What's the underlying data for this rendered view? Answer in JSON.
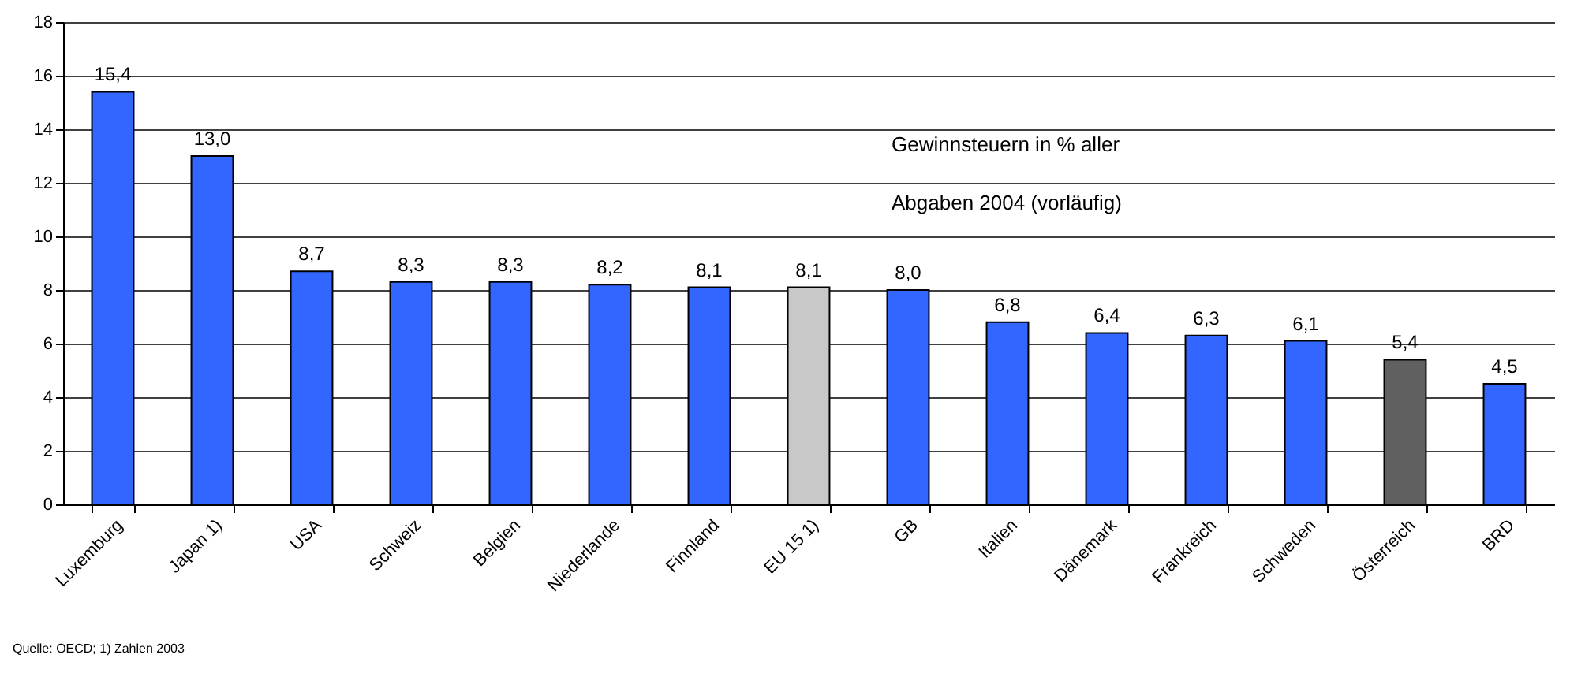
{
  "chart_data": {
    "type": "bar",
    "categories": [
      "Luxemburg",
      "Japan 1)",
      "USA",
      "Schweiz",
      "Belgien",
      "Niederlande",
      "Finnland",
      "EU 15 1)",
      "GB",
      "Italien",
      "Dänemark",
      "Frankreich",
      "Schweden",
      "Österreich",
      "BRD"
    ],
    "values": [
      15.4,
      13.0,
      8.7,
      8.3,
      8.3,
      8.2,
      8.1,
      8.1,
      8.0,
      6.8,
      6.4,
      6.3,
      6.1,
      5.4,
      4.5
    ],
    "value_labels": [
      "15,4",
      "13,0",
      "8,7",
      "8,3",
      "8,3",
      "8,2",
      "8,1",
      "8,1",
      "8,0",
      "6,8",
      "6,4",
      "6,3",
      "6,1",
      "5,4",
      "4,5"
    ],
    "colors": [
      "#3366ff",
      "#3366ff",
      "#3366ff",
      "#3366ff",
      "#3366ff",
      "#3366ff",
      "#3366ff",
      "#c8c8c8",
      "#3366ff",
      "#3366ff",
      "#3366ff",
      "#3366ff",
      "#3366ff",
      "#606060",
      "#3366ff"
    ],
    "ylim": [
      0,
      18
    ],
    "yticks": [
      0,
      2,
      4,
      6,
      8,
      10,
      12,
      14,
      16,
      18
    ],
    "grid": "y",
    "annotations": [
      "Gewinnsteuern in % aller",
      "Abgaben 2004 (vorläufig)",
      "Quelle: OECD;  1) Zahlen 2003"
    ]
  }
}
